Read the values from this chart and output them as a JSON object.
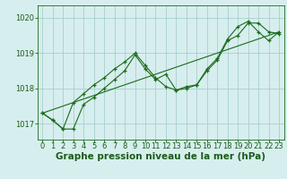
{
  "xlabel": "Graphe pression niveau de la mer (hPa)",
  "ylim": [
    1016.55,
    1020.35
  ],
  "xlim": [
    -0.5,
    23.5
  ],
  "yticks": [
    1017,
    1018,
    1019,
    1020
  ],
  "xticks": [
    0,
    1,
    2,
    3,
    4,
    5,
    6,
    7,
    8,
    9,
    10,
    11,
    12,
    13,
    14,
    15,
    16,
    17,
    18,
    19,
    20,
    21,
    22,
    23
  ],
  "line1_x": [
    0,
    1,
    2,
    3,
    4,
    5,
    6,
    7,
    8,
    9,
    10,
    11,
    12,
    13,
    14,
    15,
    16,
    17,
    18,
    19,
    20,
    21,
    22,
    23
  ],
  "line1_y": [
    1017.3,
    1017.1,
    1016.85,
    1017.6,
    1017.85,
    1018.1,
    1018.3,
    1018.55,
    1018.75,
    1019.0,
    1018.65,
    1018.3,
    1018.05,
    1017.95,
    1018.05,
    1018.1,
    1018.55,
    1018.85,
    1019.4,
    1019.75,
    1019.9,
    1019.6,
    1019.35,
    1019.6
  ],
  "line2_x": [
    0,
    1,
    2,
    3,
    4,
    5,
    6,
    7,
    8,
    9,
    10,
    11,
    12,
    13,
    14,
    15,
    16,
    17,
    18,
    19,
    20,
    21,
    22,
    23
  ],
  "line2_y": [
    1017.3,
    1017.1,
    1016.85,
    1016.85,
    1017.55,
    1017.75,
    1018.0,
    1018.25,
    1018.5,
    1018.95,
    1018.55,
    1018.25,
    1018.4,
    1017.95,
    1018.0,
    1018.1,
    1018.5,
    1018.8,
    1019.35,
    1019.5,
    1019.85,
    1019.85,
    1019.6,
    1019.55
  ],
  "line3_x": [
    0,
    23
  ],
  "line3_y": [
    1017.3,
    1019.6
  ],
  "line_color": "#1a6b1a",
  "marker": "+",
  "bg_color": "#d7eeee",
  "grid_color": "#a8cece",
  "text_color": "#1a5c1a",
  "tick_label_color": "#1a5c1a",
  "fontsize_label": 7.5,
  "fontsize_tick": 6.0
}
